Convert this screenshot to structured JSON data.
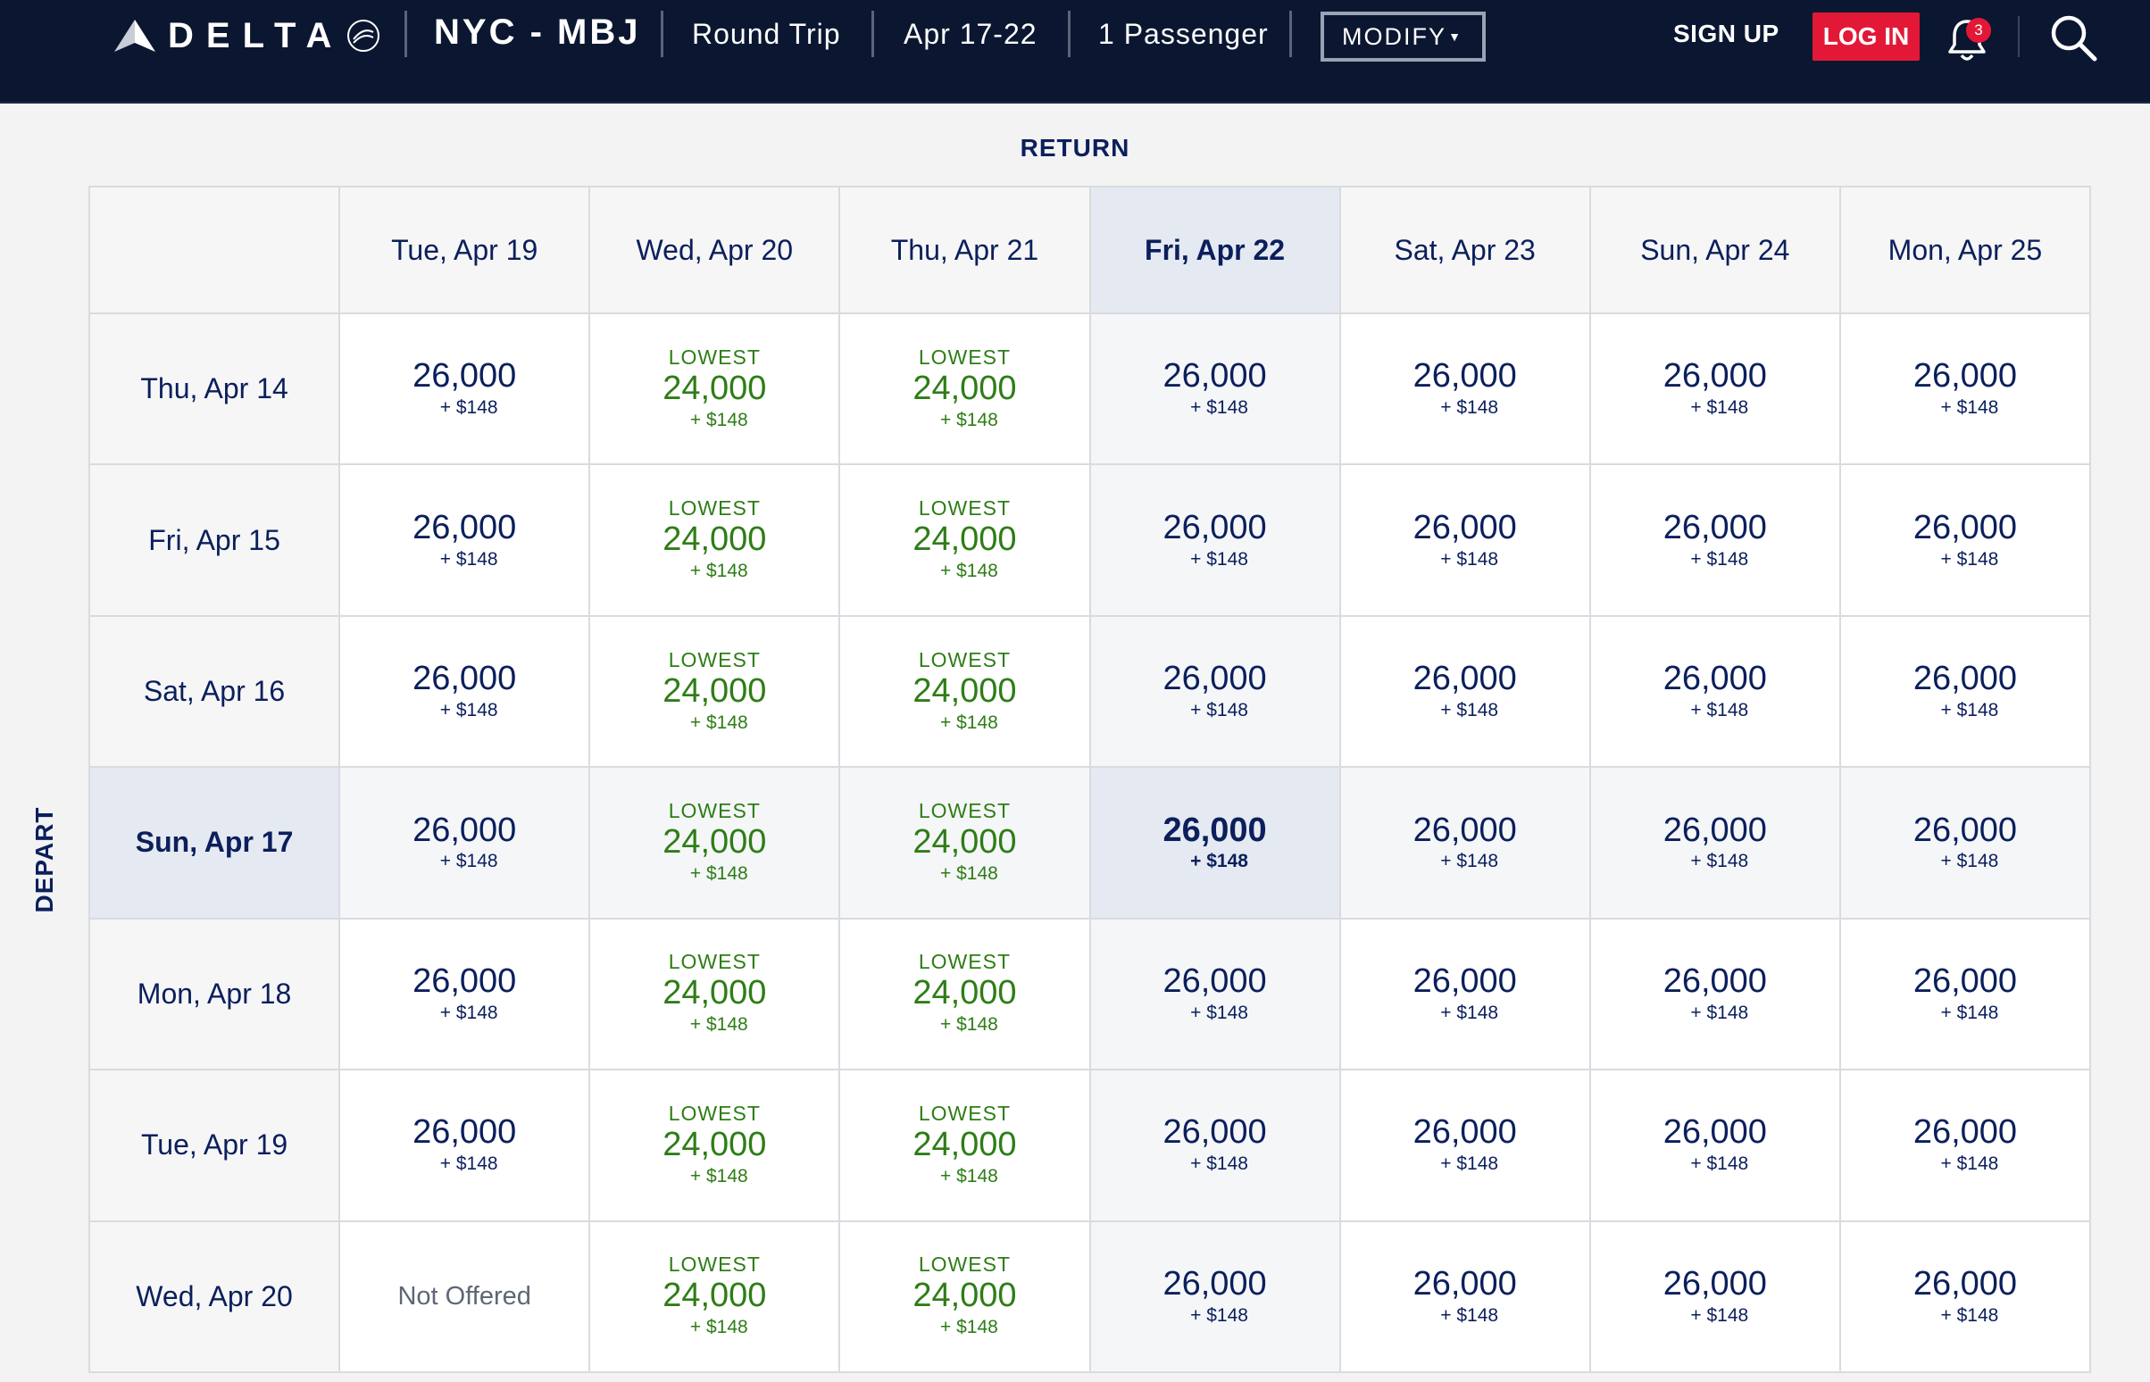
{
  "header": {
    "brand": "DELTA",
    "route": "NYC - MBJ",
    "trip_type": "Round Trip",
    "dates": "Apr 17-22",
    "passengers": "1 Passenger",
    "modify_label": "MODIFY",
    "signup_label": "SIGN UP",
    "login_label": "LOG IN",
    "notification_count": "3",
    "icons": [
      "delta-widget-logo",
      "team-seal",
      "chevron-down",
      "bell-icon",
      "search-icon"
    ]
  },
  "grid": {
    "return_label": "RETURN",
    "depart_label": "DEPART",
    "selected_return": "Fri, Apr 22",
    "selected_depart": "Sun, Apr 17",
    "return_dates": [
      "Tue, Apr 19",
      "Wed, Apr 20",
      "Thu, Apr 21",
      "Fri, Apr 22",
      "Sat, Apr 23",
      "Sun, Apr 24",
      "Mon, Apr 25"
    ],
    "depart_dates": [
      "Thu, Apr 14",
      "Fri, Apr 15",
      "Sat, Apr 16",
      "Sun, Apr 17",
      "Mon, Apr 18",
      "Tue, Apr 19",
      "Wed, Apr 20"
    ],
    "lowest_tag": "LOWEST",
    "not_offered_label": "Not Offered",
    "fares": [
      [
        "26,000|+ $148",
        "24,000|+ $148|L",
        "24,000|+ $148|L",
        "26,000|+ $148",
        "26,000|+ $148",
        "26,000|+ $148",
        "26,000|+ $148"
      ],
      [
        "26,000|+ $148",
        "24,000|+ $148|L",
        "24,000|+ $148|L",
        "26,000|+ $148",
        "26,000|+ $148",
        "26,000|+ $148",
        "26,000|+ $148"
      ],
      [
        "26,000|+ $148",
        "24,000|+ $148|L",
        "24,000|+ $148|L",
        "26,000|+ $148",
        "26,000|+ $148",
        "26,000|+ $148",
        "26,000|+ $148"
      ],
      [
        "26,000|+ $148",
        "24,000|+ $148|L",
        "24,000|+ $148|L",
        "26,000|+ $148",
        "26,000|+ $148",
        "26,000|+ $148",
        "26,000|+ $148"
      ],
      [
        "26,000|+ $148",
        "24,000|+ $148|L",
        "24,000|+ $148|L",
        "26,000|+ $148",
        "26,000|+ $148",
        "26,000|+ $148",
        "26,000|+ $148"
      ],
      [
        "26,000|+ $148",
        "24,000|+ $148|L",
        "24,000|+ $148|L",
        "26,000|+ $148",
        "26,000|+ $148",
        "26,000|+ $148",
        "26,000|+ $148"
      ],
      [
        "NA",
        "24,000|+ $148|L",
        "24,000|+ $148|L",
        "26,000|+ $148",
        "26,000|+ $148",
        "26,000|+ $148",
        "26,000|+ $148"
      ]
    ]
  },
  "colors": {
    "header_bg": "#0b1731",
    "login_red": "#e31837",
    "text_navy": "#0b1f5c",
    "lowest_green": "#2e7d16",
    "selected_bg": "#e5e9f1"
  }
}
